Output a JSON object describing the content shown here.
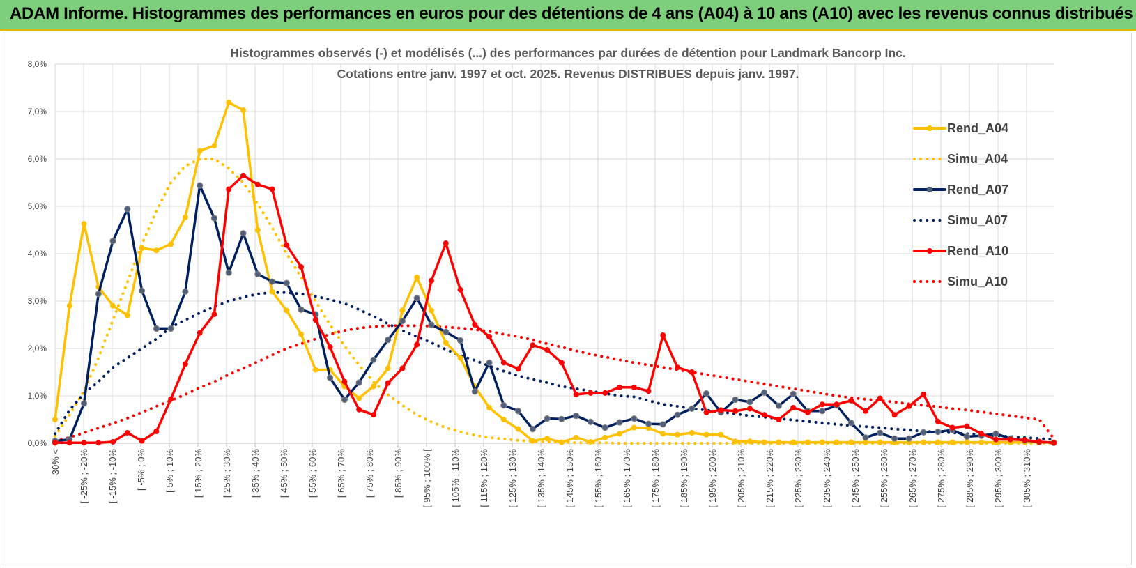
{
  "header": {
    "title": "ADAM Informe. Histogrammes des performances en euros pour des détentions de 4 ans (A04) à 10 ans (A10) avec les revenus connus distribués"
  },
  "chart_data": {
    "type": "line",
    "title_line1": "Histogrammes observés (-) et modélisés (...) des performances par durées de détention pour Landmark Bancorp Inc.",
    "title_line2": "Cotations entre janv. 1997 et oct. 2025.  Revenus DISTRIBUES depuis janv. 1997.",
    "xlabel": "",
    "ylabel": "",
    "ylim": [
      0,
      8
    ],
    "y_ticks": [
      "0,0%",
      "1,0%",
      "2,0%",
      "3,0%",
      "4,0%",
      "5,0%",
      "6,0%",
      "7,0%",
      "8,0%"
    ],
    "legend_position": "right",
    "x_labels": [
      "-30% <",
      "[ -25% ; -20%",
      "[ -15% ; -10%",
      "[ -5% ; 0%",
      "[ 5% ; 10%",
      "[ 15% ; 20%",
      "[ 25% ; 30%",
      "[ 35% ; 40%",
      "[ 45% ; 50%",
      "[ 55% ; 60%",
      "[ 65% ; 70%",
      "[ 75% ; 80%",
      "[ 85% ; 90%",
      "[ 95% ; 100% [",
      "[ 105% ; 110%",
      "[ 115% ; 120%",
      "[ 125% ; 130%",
      "[ 135% ; 140%",
      "[ 145% ; 150%",
      "[ 155% ; 160%",
      "[ 165% ; 170%",
      "[ 175% ; 180%",
      "[ 185% ; 190%",
      "[ 195% ; 200%",
      "[ 205% ; 210%",
      "[ 215% ; 220%",
      "[ 225% ; 230%",
      "[ 235% ; 240%",
      "[ 245% ; 250%",
      "[ 255% ; 260%",
      "[ 265% ; 270%",
      "[ 275% ; 280%",
      "[ 285% ; 290%",
      "[ 295% ; 300%",
      "[ 305% ; 310%"
    ],
    "series": [
      {
        "name": "Rend_A04",
        "style": "solid",
        "color": "#ffc000",
        "markers": true,
        "values": [
          0.5,
          2.9,
          4.63,
          3.3,
          2.9,
          2.7,
          4.12,
          4.07,
          4.2,
          4.77,
          6.17,
          6.28,
          7.19,
          7.03,
          4.5,
          3.2,
          2.8,
          2.3,
          1.55,
          1.55,
          1.2,
          0.95,
          1.2,
          1.58,
          2.8,
          3.5,
          2.8,
          2.12,
          1.8,
          1.2,
          0.75,
          0.5,
          0.3,
          0.05,
          0.1,
          0.02,
          0.12,
          0.03,
          0.12,
          0.2,
          0.33,
          0.32,
          0.2,
          0.18,
          0.22,
          0.18,
          0.18,
          0.04,
          0.04,
          0.02,
          0.02,
          0.02,
          0.02,
          0.02,
          0.02,
          0.02,
          0.02,
          0.02,
          0.02,
          0.02,
          0.02,
          0.02,
          0.02,
          0.02,
          0.02,
          0.02,
          0.02,
          0.02,
          0.02,
          0.02
        ]
      },
      {
        "name": "Simu_A04",
        "style": "dotted",
        "color": "#ffc000",
        "markers": false,
        "values": [
          0.15,
          0.6,
          1.1,
          1.8,
          2.6,
          3.4,
          4.2,
          4.9,
          5.5,
          5.85,
          6.0,
          6.0,
          5.8,
          5.5,
          5.05,
          4.55,
          4.0,
          3.5,
          3.0,
          2.5,
          2.05,
          1.65,
          1.3,
          1.02,
          0.8,
          0.6,
          0.45,
          0.33,
          0.24,
          0.17,
          0.12,
          0.09,
          0.06,
          0.04,
          0.03,
          0.02,
          0.01,
          0.01,
          0.01,
          0,
          0,
          0,
          0,
          0,
          0,
          0,
          0,
          0,
          0,
          0,
          0,
          0,
          0,
          0,
          0,
          0,
          0,
          0,
          0,
          0,
          0,
          0,
          0,
          0,
          0,
          0,
          0,
          0,
          0,
          0
        ]
      },
      {
        "name": "Rend_A07",
        "style": "solid",
        "color": "#002060",
        "markers": true,
        "values": [
          0.05,
          0.08,
          0.84,
          3.15,
          4.27,
          4.94,
          3.22,
          2.42,
          2.42,
          3.2,
          5.44,
          4.75,
          3.6,
          4.43,
          3.57,
          3.41,
          3.38,
          2.82,
          2.72,
          1.38,
          0.92,
          1.28,
          1.76,
          2.18,
          2.58,
          3.06,
          2.5,
          2.35,
          2.17,
          1.09,
          1.7,
          0.8,
          0.68,
          0.3,
          0.52,
          0.51,
          0.58,
          0.45,
          0.33,
          0.44,
          0.52,
          0.41,
          0.4,
          0.6,
          0.73,
          1.05,
          0.65,
          0.92,
          0.87,
          1.07,
          0.79,
          1.04,
          0.68,
          0.68,
          0.8,
          0.43,
          0.12,
          0.22,
          0.1,
          0.1,
          0.23,
          0.24,
          0.28,
          0.14,
          0.16,
          0.2,
          0.1,
          0.06,
          0.03,
          0.01
        ]
      },
      {
        "name": "Simu_A07",
        "style": "dotted",
        "color": "#002060",
        "markers": false,
        "values": [
          0.2,
          0.7,
          1.05,
          1.3,
          1.6,
          1.8,
          2.0,
          2.2,
          2.45,
          2.6,
          2.75,
          2.88,
          3.0,
          3.08,
          3.15,
          3.18,
          3.18,
          3.15,
          3.1,
          3.03,
          2.95,
          2.82,
          2.68,
          2.52,
          2.38,
          2.25,
          2.12,
          1.98,
          1.85,
          1.75,
          1.63,
          1.52,
          1.42,
          1.35,
          1.28,
          1.2,
          1.15,
          1.1,
          1.05,
          1.0,
          0.98,
          0.9,
          0.82,
          0.78,
          0.73,
          0.7,
          0.66,
          0.62,
          0.58,
          0.55,
          0.52,
          0.49,
          0.46,
          0.43,
          0.4,
          0.37,
          0.35,
          0.33,
          0.3,
          0.28,
          0.25,
          0.24,
          0.22,
          0.2,
          0.18,
          0.16,
          0.14,
          0.12,
          0.1,
          0.08
        ]
      },
      {
        "name": "Rend_A10",
        "style": "solid",
        "color": "#ff0000",
        "markers": true,
        "values": [
          0.01,
          0.01,
          0.01,
          0.01,
          0.03,
          0.22,
          0.05,
          0.25,
          0.93,
          1.67,
          2.33,
          2.72,
          5.36,
          5.65,
          5.46,
          5.36,
          4.18,
          3.72,
          2.6,
          2.03,
          1.3,
          0.71,
          0.6,
          1.27,
          1.58,
          2.08,
          3.43,
          4.22,
          3.24,
          2.5,
          2.25,
          1.7,
          1.57,
          2.07,
          1.97,
          1.7,
          1.03,
          1.06,
          1.06,
          1.18,
          1.18,
          1.1,
          2.28,
          1.6,
          1.5,
          0.65,
          0.7,
          0.68,
          0.73,
          0.6,
          0.5,
          0.75,
          0.65,
          0.82,
          0.82,
          0.9,
          0.68,
          0.95,
          0.6,
          0.78,
          1.03,
          0.46,
          0.33,
          0.36,
          0.2,
          0.08,
          0.08,
          0.07,
          0.03,
          0.01
        ]
      },
      {
        "name": "Simu_A10",
        "style": "dotted",
        "color": "#ff0000",
        "markers": false,
        "values": [
          0.05,
          0.12,
          0.22,
          0.32,
          0.42,
          0.53,
          0.65,
          0.78,
          0.9,
          1.03,
          1.17,
          1.3,
          1.45,
          1.58,
          1.72,
          1.86,
          2.0,
          2.1,
          2.2,
          2.3,
          2.38,
          2.43,
          2.46,
          2.48,
          2.48,
          2.48,
          2.47,
          2.45,
          2.43,
          2.4,
          2.36,
          2.3,
          2.25,
          2.18,
          2.1,
          2.03,
          1.95,
          1.88,
          1.82,
          1.76,
          1.7,
          1.65,
          1.6,
          1.55,
          1.5,
          1.45,
          1.4,
          1.35,
          1.3,
          1.25,
          1.2,
          1.15,
          1.1,
          1.05,
          1.0,
          0.96,
          0.93,
          0.9,
          0.87,
          0.83,
          0.8,
          0.77,
          0.73,
          0.7,
          0.66,
          0.62,
          0.58,
          0.54,
          0.5,
          0.1
        ]
      }
    ]
  }
}
